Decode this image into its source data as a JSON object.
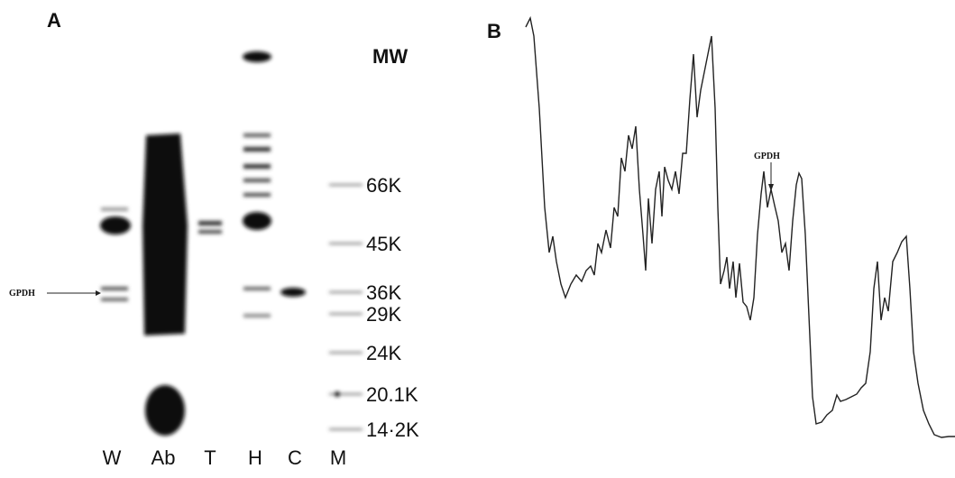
{
  "panels": {
    "a": {
      "label": "A",
      "mw_header": "MW",
      "markers": [
        "66K",
        "45K",
        "36K",
        "29K",
        "24K",
        "20.1K",
        "14·2K"
      ],
      "lanes": [
        "W",
        "Ab",
        "T",
        "H",
        "C",
        "M"
      ],
      "arrow_label": "GPDH"
    },
    "b": {
      "label": "B",
      "arrow_label": "GPDH"
    }
  }
}
